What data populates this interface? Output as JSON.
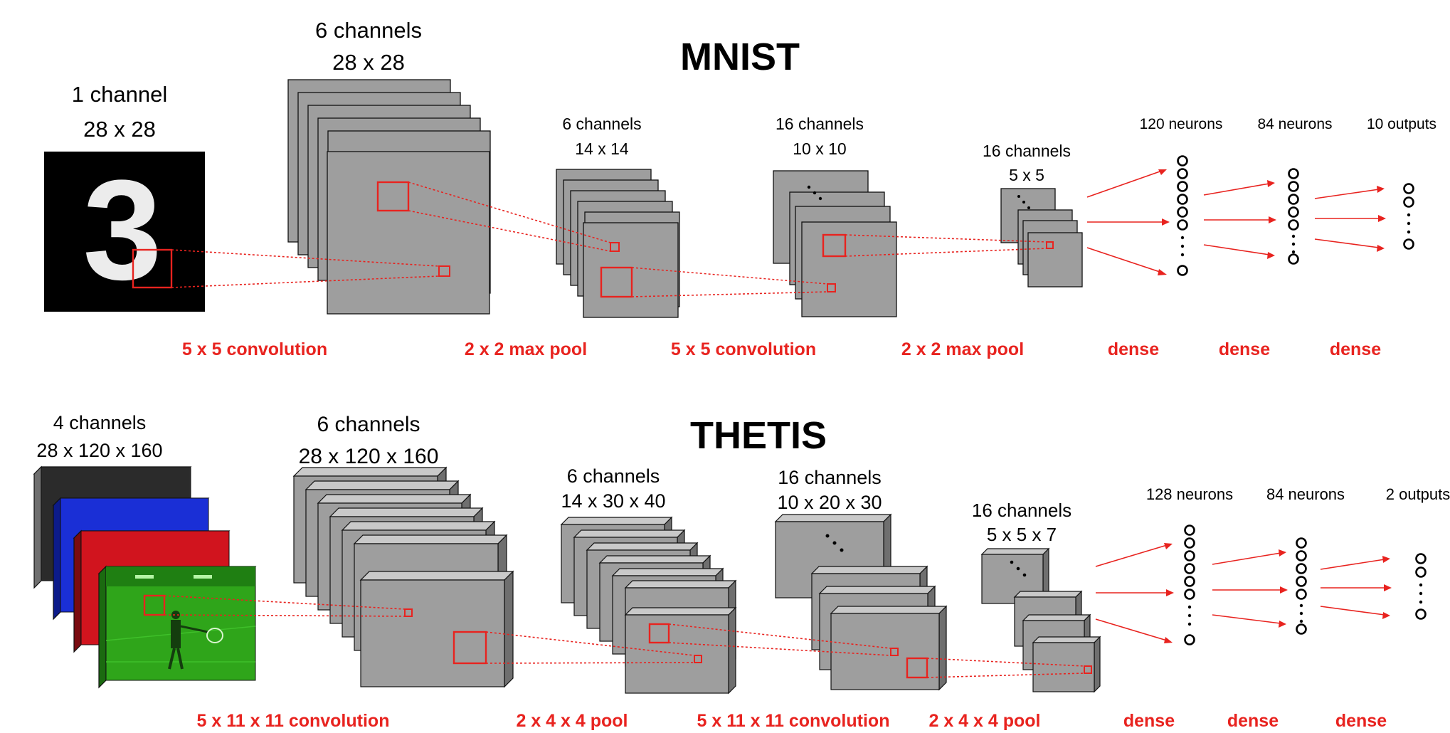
{
  "mnist": {
    "title": "MNIST",
    "input": {
      "line1": "1 channel",
      "line2": "28 x 28",
      "digit": "3"
    },
    "conv1": {
      "line1": "6 channels",
      "line2": "28 x 28"
    },
    "pool1": {
      "line1": "6 channels",
      "line2": "14 x 14"
    },
    "conv2": {
      "line1": "16 channels",
      "line2": "10 x 10"
    },
    "pool2": {
      "line1": "16 channels",
      "line2": "5 x 5"
    },
    "dense1": "120 neurons",
    "dense2": "84 neurons",
    "outputs": "10 outputs",
    "ops": [
      "5 x 5 convolution",
      "2 x 2 max pool",
      "5 x 5 convolution",
      "2 x 2 max pool",
      "dense",
      "dense",
      "dense"
    ]
  },
  "thetis": {
    "title": "THETIS",
    "input": {
      "line1": "4 channels",
      "line2": "28 x 120 x 160"
    },
    "conv1": {
      "line1": "6 channels",
      "line2": "28 x 120 x 160"
    },
    "pool1": {
      "line1": "6 channels",
      "line2": "14 x 30 x 40"
    },
    "conv2": {
      "line1": "16 channels",
      "line2": "10 x 20 x 30"
    },
    "pool2": {
      "line1": "16 channels",
      "line2": "5 x 5 x 7"
    },
    "dense1": "128 neurons",
    "dense2": "84 neurons",
    "outputs": "2 outputs",
    "ops": [
      "5 x 11 x 11 convolution",
      "2 x 4 x 4 pool",
      "5 x 11 x 11 convolution",
      "2 x 4 x 4 pool",
      "dense",
      "dense",
      "dense"
    ]
  },
  "colors": {
    "accent": "#e8231f",
    "feature_map": "#9e9e9e",
    "channel_gray": "#555555",
    "channel_blue": "#1a2fd6",
    "channel_red": "#d1141e",
    "channel_green": "#2fa51a"
  }
}
